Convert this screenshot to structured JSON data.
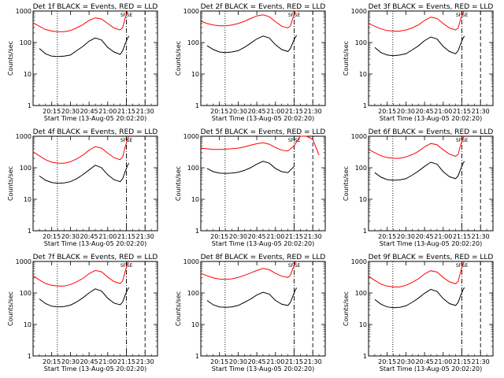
{
  "common": {
    "ylabel": "Counts/sec",
    "xlabel": "Start Time (13-Aug-05 20:02:20)",
    "yticks": [
      "1",
      "10",
      "100",
      "1000"
    ],
    "xticks": [
      "20:15",
      "20:30",
      "20:45",
      "21:00",
      "21:15",
      "21:30"
    ],
    "marker_labels": [
      "SF",
      "SE"
    ],
    "colors": {
      "events": "#000000",
      "lld": "#ff0000"
    }
  },
  "chart_data": [
    {
      "type": "line",
      "title": "Det 1f BLACK = Events, RED = LLD",
      "yscale": "log",
      "ylim": [
        1,
        1000
      ],
      "xlim_minutes_after_20_00": [
        0,
        100
      ],
      "x": [
        0,
        5,
        10,
        15,
        20,
        25,
        30,
        35,
        40,
        45,
        50,
        55,
        60,
        65,
        70,
        72,
        74,
        76,
        77
      ],
      "series": [
        {
          "name": "LLD",
          "values": [
            420,
            330,
            260,
            230,
            220,
            220,
            240,
            290,
            370,
            500,
            610,
            560,
            400,
            290,
            250,
            300,
            600,
            1000,
            1100
          ]
        },
        {
          "name": "Events",
          "values": [
            null,
            65,
            44,
            37,
            36,
            37,
            40,
            55,
            75,
            110,
            140,
            120,
            70,
            50,
            42,
            55,
            90,
            140,
            160
          ]
        }
      ],
      "vlines": {
        "dotted": 19.5,
        "dashdot": 75,
        "dashed": 90
      }
    },
    {
      "type": "line",
      "title": "Det 2f BLACK = Events, RED = LLD",
      "yscale": "log",
      "ylim": [
        1,
        1000
      ],
      "xlim_minutes_after_20_00": [
        0,
        100
      ],
      "x": [
        0,
        5,
        10,
        15,
        20,
        25,
        30,
        35,
        40,
        45,
        50,
        55,
        60,
        65,
        70,
        72,
        74,
        76,
        77
      ],
      "series": [
        {
          "name": "LLD",
          "values": [
            480,
            400,
            360,
            340,
            340,
            360,
            400,
            470,
            580,
            700,
            760,
            660,
            460,
            330,
            290,
            340,
            600,
            1000,
            1100
          ]
        },
        {
          "name": "Events",
          "values": [
            null,
            80,
            60,
            50,
            48,
            50,
            55,
            70,
            95,
            130,
            160,
            140,
            85,
            60,
            52,
            65,
            100,
            150,
            170
          ]
        }
      ],
      "vlines": {
        "dotted": 19.5,
        "dashdot": 75,
        "dashed": 90
      }
    },
    {
      "type": "line",
      "title": "Det 3f BLACK = Events, RED = LLD",
      "yscale": "log",
      "ylim": [
        1,
        1000
      ],
      "xlim_minutes_after_20_00": [
        0,
        100
      ],
      "x": [
        0,
        5,
        10,
        15,
        20,
        25,
        30,
        35,
        40,
        45,
        50,
        55,
        60,
        65,
        70,
        72,
        74,
        76,
        77
      ],
      "series": [
        {
          "name": "LLD",
          "values": [
            400,
            330,
            270,
            240,
            230,
            230,
            250,
            290,
            360,
            500,
            640,
            580,
            400,
            290,
            250,
            290,
            560,
            900,
            1000
          ]
        },
        {
          "name": "Events",
          "values": [
            null,
            70,
            48,
            40,
            38,
            40,
            44,
            58,
            78,
            115,
            150,
            130,
            75,
            52,
            44,
            55,
            90,
            140,
            160
          ]
        }
      ],
      "vlines": {
        "dotted": 19.5,
        "dashdot": 75,
        "dashed": 90
      }
    },
    {
      "type": "line",
      "title": "Det 4f BLACK = Events, RED = LLD",
      "yscale": "log",
      "ylim": [
        1,
        1000
      ],
      "xlim_minutes_after_20_00": [
        0,
        100
      ],
      "x": [
        0,
        5,
        10,
        15,
        20,
        25,
        30,
        35,
        40,
        45,
        50,
        55,
        60,
        65,
        70,
        72,
        74,
        76,
        77
      ],
      "series": [
        {
          "name": "LLD",
          "values": [
            320,
            240,
            180,
            150,
            140,
            140,
            155,
            190,
            250,
            360,
            470,
            420,
            290,
            210,
            180,
            220,
            450,
            850,
            1000
          ]
        },
        {
          "name": "Events",
          "values": [
            null,
            55,
            40,
            34,
            32,
            33,
            36,
            45,
            60,
            85,
            120,
            100,
            60,
            42,
            36,
            45,
            75,
            120,
            140
          ]
        }
      ],
      "vlines": {
        "dotted": 19.5,
        "dashdot": 75,
        "dashed": 90
      }
    },
    {
      "type": "line",
      "title": "Det 5f BLACK = Events, RED = LLD",
      "yscale": "log",
      "ylim": [
        1,
        1000
      ],
      "xlim_minutes_after_20_00": [
        0,
        100
      ],
      "x": [
        0,
        5,
        10,
        15,
        20,
        25,
        30,
        35,
        40,
        45,
        50,
        55,
        60,
        65,
        70,
        75,
        80,
        85,
        90,
        95
      ],
      "series": [
        {
          "name": "LLD",
          "values": [
            420,
            400,
            380,
            380,
            390,
            400,
            420,
            460,
            520,
            580,
            620,
            560,
            440,
            360,
            340,
            500,
            1000,
            1200,
            800,
            250
          ]
        },
        {
          "name": "Events",
          "values": [
            null,
            95,
            75,
            68,
            66,
            68,
            72,
            82,
            100,
            130,
            160,
            140,
            95,
            75,
            70,
            110,
            null,
            null,
            null,
            null
          ]
        }
      ],
      "vlines": {
        "dotted": 19.5,
        "dashdot": 75,
        "dashed": 90
      }
    },
    {
      "type": "line",
      "title": "Det 6f BLACK = Events, RED = LLD",
      "yscale": "log",
      "ylim": [
        1,
        1000
      ],
      "xlim_minutes_after_20_00": [
        0,
        100
      ],
      "x": [
        0,
        5,
        10,
        15,
        20,
        25,
        30,
        35,
        40,
        45,
        50,
        55,
        60,
        65,
        70,
        72,
        74,
        76,
        77
      ],
      "series": [
        {
          "name": "LLD",
          "values": [
            380,
            300,
            240,
            210,
            200,
            200,
            220,
            260,
            330,
            460,
            590,
            540,
            370,
            270,
            230,
            270,
            520,
            900,
            1000
          ]
        },
        {
          "name": "Events",
          "values": [
            null,
            70,
            50,
            42,
            40,
            41,
            45,
            58,
            78,
            110,
            150,
            130,
            75,
            52,
            45,
            56,
            90,
            140,
            160
          ]
        }
      ],
      "vlines": {
        "dotted": 19.5,
        "dashdot": 75,
        "dashed": 90
      }
    },
    {
      "type": "line",
      "title": "Det 7f BLACK = Events, RED = LLD",
      "yscale": "log",
      "ylim": [
        1,
        1000
      ],
      "xlim_minutes_after_20_00": [
        0,
        100
      ],
      "x": [
        0,
        5,
        10,
        15,
        20,
        25,
        30,
        35,
        40,
        45,
        50,
        55,
        60,
        65,
        70,
        72,
        74,
        76,
        77
      ],
      "series": [
        {
          "name": "LLD",
          "values": [
            350,
            260,
            200,
            175,
            165,
            165,
            185,
            225,
            290,
            410,
            520,
            470,
            320,
            230,
            200,
            240,
            480,
            900,
            1000
          ]
        },
        {
          "name": "Events",
          "values": [
            null,
            65,
            46,
            38,
            36,
            37,
            41,
            52,
            70,
            100,
            135,
            115,
            68,
            48,
            42,
            52,
            85,
            130,
            150
          ]
        }
      ],
      "vlines": {
        "dotted": 19.5,
        "dashdot": 75,
        "dashed": 90
      }
    },
    {
      "type": "line",
      "title": "Det 8f BLACK = Events, RED = LLD",
      "yscale": "log",
      "ylim": [
        1,
        1000
      ],
      "xlim_minutes_after_20_00": [
        0,
        100
      ],
      "x": [
        0,
        5,
        10,
        15,
        20,
        25,
        30,
        35,
        40,
        45,
        50,
        55,
        60,
        65,
        70,
        72,
        74,
        76,
        77
      ],
      "series": [
        {
          "name": "LLD",
          "values": [
            420,
            350,
            300,
            275,
            270,
            280,
            310,
            360,
            430,
            520,
            600,
            550,
            420,
            340,
            310,
            360,
            600,
            950,
            1050
          ]
        },
        {
          "name": "Events",
          "values": [
            null,
            58,
            42,
            36,
            35,
            36,
            40,
            50,
            64,
            86,
            105,
            92,
            58,
            44,
            40,
            50,
            80,
            125,
            145
          ]
        }
      ],
      "vlines": {
        "dotted": 19.5,
        "dashdot": 75,
        "dashed": 90
      }
    },
    {
      "type": "line",
      "title": "Det 9f BLACK = Events, RED = LLD",
      "yscale": "log",
      "ylim": [
        1,
        1000
      ],
      "xlim_minutes_after_20_00": [
        0,
        100
      ],
      "x": [
        0,
        5,
        10,
        15,
        20,
        25,
        30,
        35,
        40,
        45,
        50,
        55,
        60,
        65,
        70,
        72,
        74,
        76,
        77
      ],
      "series": [
        {
          "name": "LLD",
          "values": [
            340,
            250,
            190,
            165,
            155,
            155,
            175,
            215,
            280,
            400,
            510,
            460,
            310,
            225,
            195,
            235,
            470,
            880,
            1000
          ]
        },
        {
          "name": "Events",
          "values": [
            null,
            62,
            44,
            36,
            34,
            35,
            39,
            50,
            68,
            98,
            130,
            112,
            66,
            46,
            40,
            50,
            82,
            128,
            148
          ]
        }
      ],
      "vlines": {
        "dotted": 19.5,
        "dashdot": 75,
        "dashed": 90
      }
    }
  ]
}
